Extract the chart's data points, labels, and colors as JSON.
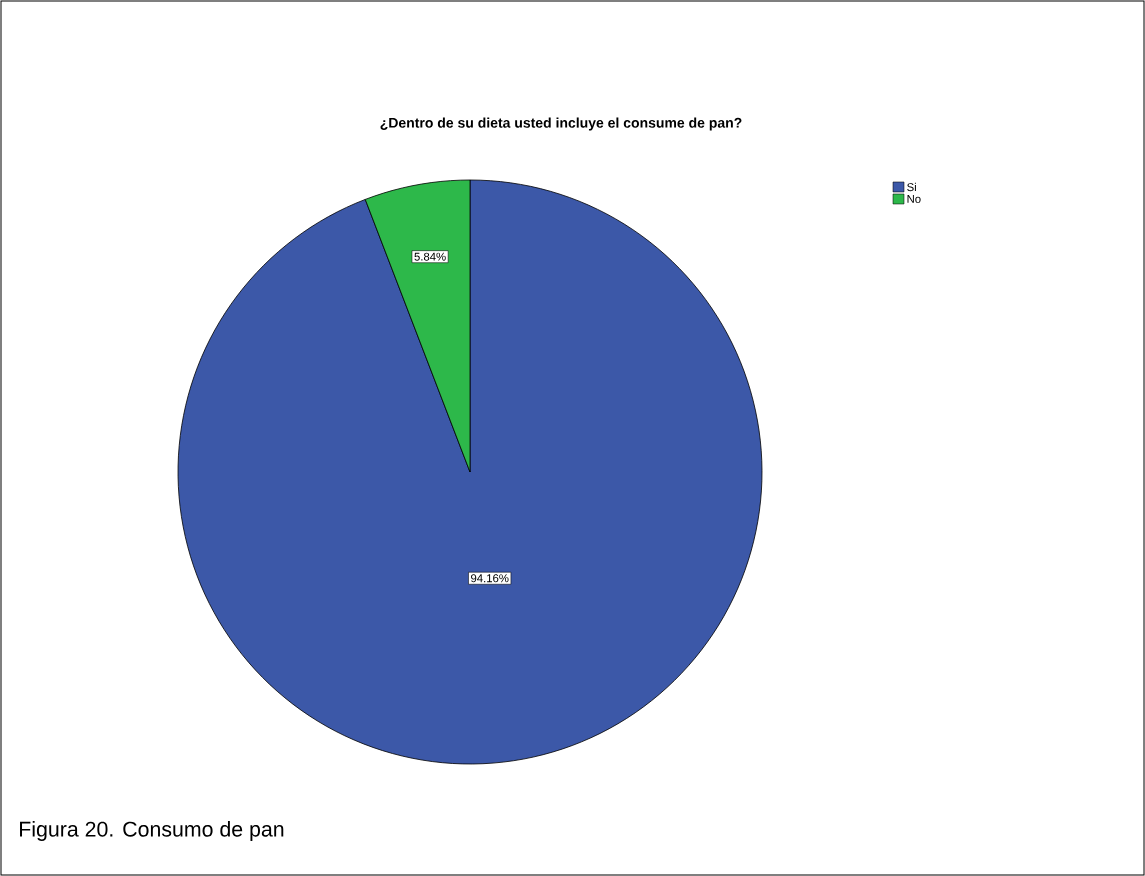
{
  "chart_data": {
    "type": "pie",
    "title": "¿Dentro de su dieta usted incluye el consume de pan?",
    "categories": [
      "Si",
      "No"
    ],
    "values": [
      94.16,
      5.84
    ],
    "colors": [
      "#3c58a8",
      "#2db84a"
    ],
    "value_labels": [
      "94.16%",
      "5.84%"
    ],
    "legend": "top right",
    "annotations": [
      "Figura 20. Consumo de pan"
    ]
  }
}
